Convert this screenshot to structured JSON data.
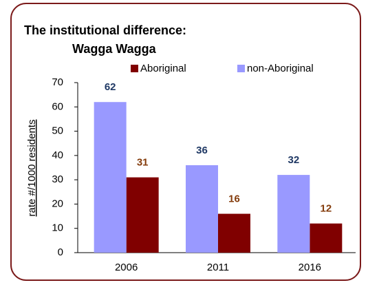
{
  "chart_data": {
    "type": "bar",
    "title": "The institutional difference:",
    "subtitle": "Wagga Wagga",
    "y_label": "rate #/1000 residents",
    "fragment": "d",
    "categories": [
      "2006",
      "2011",
      "2016"
    ],
    "series": [
      {
        "name": "Aboriginal",
        "color": "#800000",
        "label_color": "#843c0c",
        "values": [
          31,
          16,
          12
        ]
      },
      {
        "name": "non-Aboriginal",
        "color": "#9999ff",
        "label_color": "#1f3864",
        "values": [
          62,
          36,
          32
        ]
      }
    ],
    "ylim": [
      0,
      70
    ],
    "yticks": [
      0,
      10,
      20,
      30,
      40,
      50,
      60,
      70
    ],
    "grid": false
  }
}
